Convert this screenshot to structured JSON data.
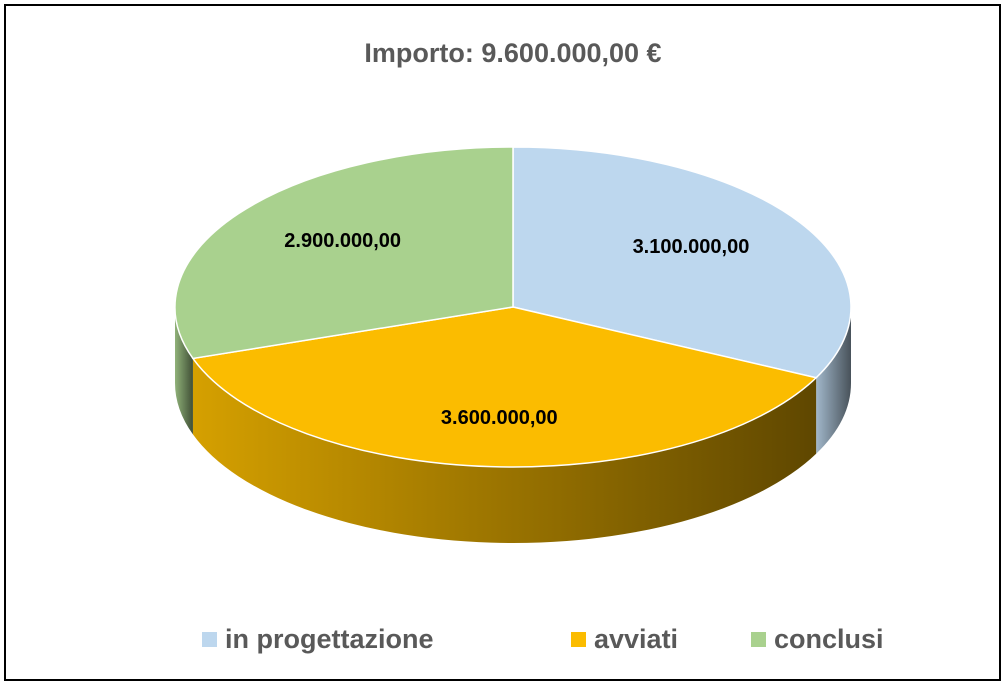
{
  "chart_data": {
    "type": "pie",
    "title": "Importo: 9.600.000,00 €",
    "categories": [
      "in progettazione",
      "avviati",
      "conclusi"
    ],
    "values": [
      3100000,
      3600000,
      2900000
    ],
    "value_labels": [
      "3.100.000,00",
      "3.600.000,00",
      "2.900.000,00"
    ],
    "colors": [
      "#bdd7ee",
      "#fbbc00",
      "#a9d18e"
    ],
    "legend": "bottom"
  }
}
